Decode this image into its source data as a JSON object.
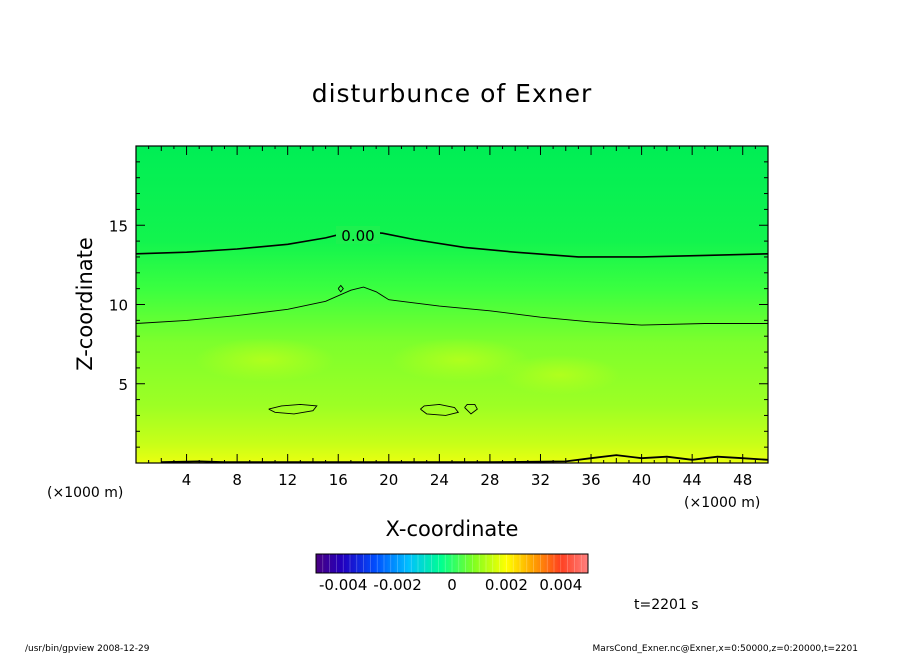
{
  "chart_data": {
    "type": "heatmap",
    "title": "disturbunce of Exner",
    "xlabel": "X-coordinate",
    "ylabel": "Z-coordinate",
    "x_unit": "(×1000 m)",
    "y_unit": "(×1000 m)",
    "xlim": [
      0,
      50
    ],
    "ylim": [
      0,
      20
    ],
    "x_ticks": [
      4,
      8,
      12,
      16,
      20,
      24,
      28,
      32,
      36,
      40,
      44,
      48
    ],
    "y_ticks": [
      5,
      10,
      15
    ],
    "contour_label": "0.00",
    "contours": [
      {
        "level": 0.0,
        "points": [
          [
            0,
            13.2
          ],
          [
            4,
            13.3
          ],
          [
            8,
            13.5
          ],
          [
            12,
            13.8
          ],
          [
            15,
            14.2
          ],
          [
            16.5,
            14.5
          ],
          [
            18,
            14.6
          ],
          [
            19.5,
            14.5
          ],
          [
            22,
            14.1
          ],
          [
            26,
            13.6
          ],
          [
            30,
            13.3
          ],
          [
            35,
            13.0
          ],
          [
            40,
            13.0
          ],
          [
            45,
            13.1
          ],
          [
            50,
            13.2
          ]
        ]
      },
      {
        "level": -0.0005,
        "points": [
          [
            0,
            8.8
          ],
          [
            4,
            9.0
          ],
          [
            8,
            9.3
          ],
          [
            12,
            9.7
          ],
          [
            15,
            10.2
          ],
          [
            17,
            10.9
          ],
          [
            18,
            11.1
          ],
          [
            19,
            10.8
          ],
          [
            20,
            10.3
          ],
          [
            21,
            10.2
          ],
          [
            24,
            9.9
          ],
          [
            28,
            9.6
          ],
          [
            32,
            9.2
          ],
          [
            36,
            8.9
          ],
          [
            40,
            8.7
          ],
          [
            45,
            8.8
          ],
          [
            50,
            8.8
          ]
        ]
      },
      {
        "level": -0.001,
        "points": [
          [
            10.5,
            3.4
          ],
          [
            11,
            3.2
          ],
          [
            12.5,
            3.1
          ],
          [
            14,
            3.3
          ],
          [
            14.3,
            3.6
          ],
          [
            13,
            3.7
          ],
          [
            11.5,
            3.6
          ],
          [
            10.5,
            3.4
          ]
        ]
      },
      {
        "level": -0.001,
        "points": [
          [
            22.5,
            3.4
          ],
          [
            23,
            3.1
          ],
          [
            24.5,
            3.0
          ],
          [
            25.5,
            3.2
          ],
          [
            25.2,
            3.5
          ],
          [
            24,
            3.7
          ],
          [
            22.8,
            3.6
          ],
          [
            22.5,
            3.4
          ]
        ]
      },
      {
        "level": -0.001,
        "points": [
          [
            26,
            3.5
          ],
          [
            26.5,
            3.1
          ],
          [
            27,
            3.4
          ],
          [
            26.8,
            3.7
          ],
          [
            26.2,
            3.7
          ],
          [
            26,
            3.5
          ]
        ]
      },
      {
        "level": -0.0005,
        "points": [
          [
            16,
            11.0
          ],
          [
            16.2,
            10.8
          ],
          [
            16.4,
            11.0
          ],
          [
            16.2,
            11.2
          ],
          [
            16,
            11.0
          ]
        ]
      },
      {
        "level": 0.0015,
        "points": [
          [
            2,
            0.05
          ],
          [
            5,
            0.1
          ],
          [
            7,
            0.05
          ],
          [
            20,
            0.05
          ],
          [
            28,
            0.05
          ],
          [
            34,
            0.1
          ],
          [
            36,
            0.3
          ],
          [
            38,
            0.5
          ],
          [
            40,
            0.3
          ],
          [
            42,
            0.4
          ],
          [
            44,
            0.2
          ],
          [
            46,
            0.4
          ],
          [
            48,
            0.3
          ],
          [
            50,
            0.2
          ]
        ]
      }
    ],
    "colorbar": {
      "tick_labels": [
        "-0.004",
        "-0.002",
        "0",
        "0.002",
        "0.004"
      ],
      "tick_values": [
        -0.004,
        -0.002,
        0,
        0.002,
        0.004
      ],
      "range": [
        -0.005,
        0.005
      ],
      "colormap": "rainbow"
    },
    "grid": false
  },
  "labels": {
    "time": "t=2201 s",
    "footer_left": "/usr/bin/gpview   2008-12-29",
    "footer_right": "MarsCond_Exner.nc@Exner,x=0:50000,z=0:20000,t=2201"
  },
  "colors": {
    "field_top": "#00ee55",
    "field_mid": "#33ff44",
    "field_low": "#a6ff22",
    "field_bottom": "#e6ff12"
  }
}
